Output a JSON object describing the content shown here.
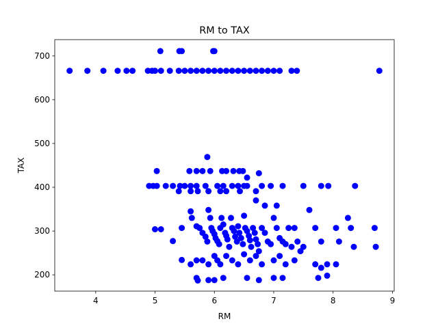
{
  "chart_data": {
    "type": "scatter",
    "title": "RM to TAX",
    "xlabel": "RM",
    "ylabel": "TAX",
    "xlim": [
      3.31,
      9.03
    ],
    "ylim": [
      162.8,
      737.2
    ],
    "xticks": [
      4,
      5,
      6,
      7,
      8,
      9
    ],
    "yticks": [
      200,
      300,
      400,
      500,
      600,
      700
    ],
    "grid": false,
    "color": "#0000ff",
    "series": [
      {
        "points": [
          [
            3.56,
            666
          ],
          [
            3.86,
            666
          ],
          [
            4.13,
            666
          ],
          [
            4.37,
            666
          ],
          [
            4.52,
            666
          ],
          [
            4.62,
            666
          ],
          [
            4.88,
            666
          ],
          [
            4.95,
            666
          ],
          [
            5.0,
            666
          ],
          [
            5.1,
            666
          ],
          [
            5.25,
            666
          ],
          [
            5.4,
            666
          ],
          [
            5.5,
            666
          ],
          [
            5.6,
            666
          ],
          [
            5.7,
            666
          ],
          [
            5.8,
            666
          ],
          [
            5.9,
            666
          ],
          [
            6.0,
            666
          ],
          [
            6.1,
            666
          ],
          [
            6.2,
            666
          ],
          [
            6.3,
            666
          ],
          [
            6.4,
            666
          ],
          [
            6.5,
            666
          ],
          [
            6.6,
            666
          ],
          [
            6.7,
            666
          ],
          [
            6.8,
            666
          ],
          [
            6.9,
            666
          ],
          [
            7.0,
            666
          ],
          [
            7.1,
            666
          ],
          [
            7.3,
            666
          ],
          [
            7.39,
            666
          ],
          [
            8.78,
            666
          ],
          [
            5.09,
            711
          ],
          [
            5.41,
            711
          ],
          [
            5.45,
            711
          ],
          [
            5.98,
            711
          ],
          [
            6.0,
            711
          ],
          [
            5.88,
            469
          ],
          [
            5.03,
            437
          ],
          [
            5.58,
            437
          ],
          [
            5.7,
            437
          ],
          [
            5.8,
            437
          ],
          [
            5.93,
            437
          ],
          [
            6.13,
            437
          ],
          [
            6.2,
            437
          ],
          [
            6.32,
            437
          ],
          [
            6.42,
            437
          ],
          [
            6.48,
            437
          ],
          [
            6.75,
            432
          ],
          [
            4.9,
            403
          ],
          [
            4.97,
            403
          ],
          [
            5.03,
            403
          ],
          [
            5.18,
            403
          ],
          [
            5.3,
            403
          ],
          [
            5.42,
            403
          ],
          [
            5.5,
            403
          ],
          [
            5.6,
            403
          ],
          [
            5.7,
            403
          ],
          [
            5.85,
            403
          ],
          [
            6.05,
            403
          ],
          [
            6.15,
            403
          ],
          [
            6.3,
            403
          ],
          [
            6.4,
            403
          ],
          [
            6.5,
            403
          ],
          [
            6.55,
            403
          ],
          [
            6.8,
            403
          ],
          [
            6.95,
            403
          ],
          [
            7.15,
            403
          ],
          [
            7.5,
            403
          ],
          [
            7.8,
            403
          ],
          [
            7.92,
            403
          ],
          [
            8.37,
            403
          ],
          [
            5.4,
            391
          ],
          [
            5.6,
            391
          ],
          [
            5.72,
            391
          ],
          [
            5.9,
            391
          ],
          [
            6.1,
            391
          ],
          [
            6.2,
            391
          ],
          [
            6.43,
            391
          ],
          [
            6.7,
            391
          ],
          [
            6.55,
            422
          ],
          [
            6.7,
            370
          ],
          [
            6.85,
            358
          ],
          [
            7.05,
            358
          ],
          [
            5.0,
            304
          ],
          [
            5.1,
            304
          ],
          [
            5.3,
            277
          ],
          [
            5.45,
            307
          ],
          [
            5.6,
            345
          ],
          [
            5.62,
            330
          ],
          [
            5.7,
            311
          ],
          [
            5.75,
            307
          ],
          [
            5.8,
            296
          ],
          [
            5.85,
            287
          ],
          [
            5.88,
            276
          ],
          [
            5.9,
            348
          ],
          [
            5.93,
            330
          ],
          [
            5.95,
            307
          ],
          [
            5.97,
            300
          ],
          [
            6.0,
            293
          ],
          [
            6.02,
            284
          ],
          [
            6.05,
            277
          ],
          [
            6.08,
            270
          ],
          [
            6.1,
            307
          ],
          [
            6.12,
            330
          ],
          [
            6.15,
            315
          ],
          [
            6.18,
            296
          ],
          [
            6.2,
            289
          ],
          [
            6.22,
            281
          ],
          [
            6.25,
            264
          ],
          [
            6.28,
            330
          ],
          [
            6.3,
            307
          ],
          [
            6.33,
            300
          ],
          [
            6.35,
            287
          ],
          [
            6.38,
            276
          ],
          [
            6.4,
            311
          ],
          [
            6.42,
            296
          ],
          [
            6.45,
            284
          ],
          [
            6.48,
            270
          ],
          [
            6.5,
            335
          ],
          [
            6.52,
            307
          ],
          [
            6.55,
            300
          ],
          [
            6.58,
            289
          ],
          [
            6.6,
            279
          ],
          [
            6.62,
            264
          ],
          [
            6.65,
            307
          ],
          [
            6.68,
            296
          ],
          [
            6.7,
            281
          ],
          [
            6.73,
            270
          ],
          [
            6.75,
            254
          ],
          [
            6.8,
            307
          ],
          [
            6.85,
            296
          ],
          [
            6.9,
            276
          ],
          [
            6.95,
            270
          ],
          [
            7.0,
            330
          ],
          [
            7.05,
            307
          ],
          [
            7.1,
            284
          ],
          [
            7.15,
            276
          ],
          [
            7.2,
            270
          ],
          [
            7.25,
            307
          ],
          [
            7.3,
            264
          ],
          [
            7.35,
            307
          ],
          [
            7.4,
            276
          ],
          [
            7.45,
            254
          ],
          [
            7.5,
            264
          ],
          [
            7.6,
            348
          ],
          [
            7.7,
            307
          ],
          [
            7.8,
            276
          ],
          [
            8.05,
            307
          ],
          [
            8.1,
            276
          ],
          [
            8.25,
            330
          ],
          [
            8.3,
            307
          ],
          [
            8.35,
            264
          ],
          [
            8.7,
            307
          ],
          [
            8.72,
            264
          ],
          [
            5.45,
            234
          ],
          [
            5.6,
            224
          ],
          [
            5.7,
            233
          ],
          [
            5.8,
            233
          ],
          [
            5.9,
            224
          ],
          [
            6.0,
            243
          ],
          [
            6.05,
            233
          ],
          [
            6.1,
            224
          ],
          [
            6.2,
            243
          ],
          [
            6.3,
            233
          ],
          [
            6.4,
            224
          ],
          [
            6.5,
            247
          ],
          [
            6.6,
            233
          ],
          [
            6.7,
            243
          ],
          [
            6.8,
            224
          ],
          [
            7.0,
            233
          ],
          [
            7.1,
            243
          ],
          [
            7.2,
            224
          ],
          [
            7.35,
            233
          ],
          [
            7.7,
            224
          ],
          [
            7.8,
            216
          ],
          [
            7.9,
            224
          ],
          [
            8.05,
            224
          ],
          [
            5.7,
            193
          ],
          [
            5.72,
            187
          ],
          [
            5.9,
            188
          ],
          [
            6.0,
            188
          ],
          [
            6.15,
            193
          ],
          [
            6.55,
            193
          ],
          [
            6.75,
            188
          ],
          [
            7.0,
            193
          ],
          [
            7.15,
            193
          ],
          [
            7.75,
            193
          ],
          [
            7.9,
            198
          ]
        ]
      }
    ]
  }
}
